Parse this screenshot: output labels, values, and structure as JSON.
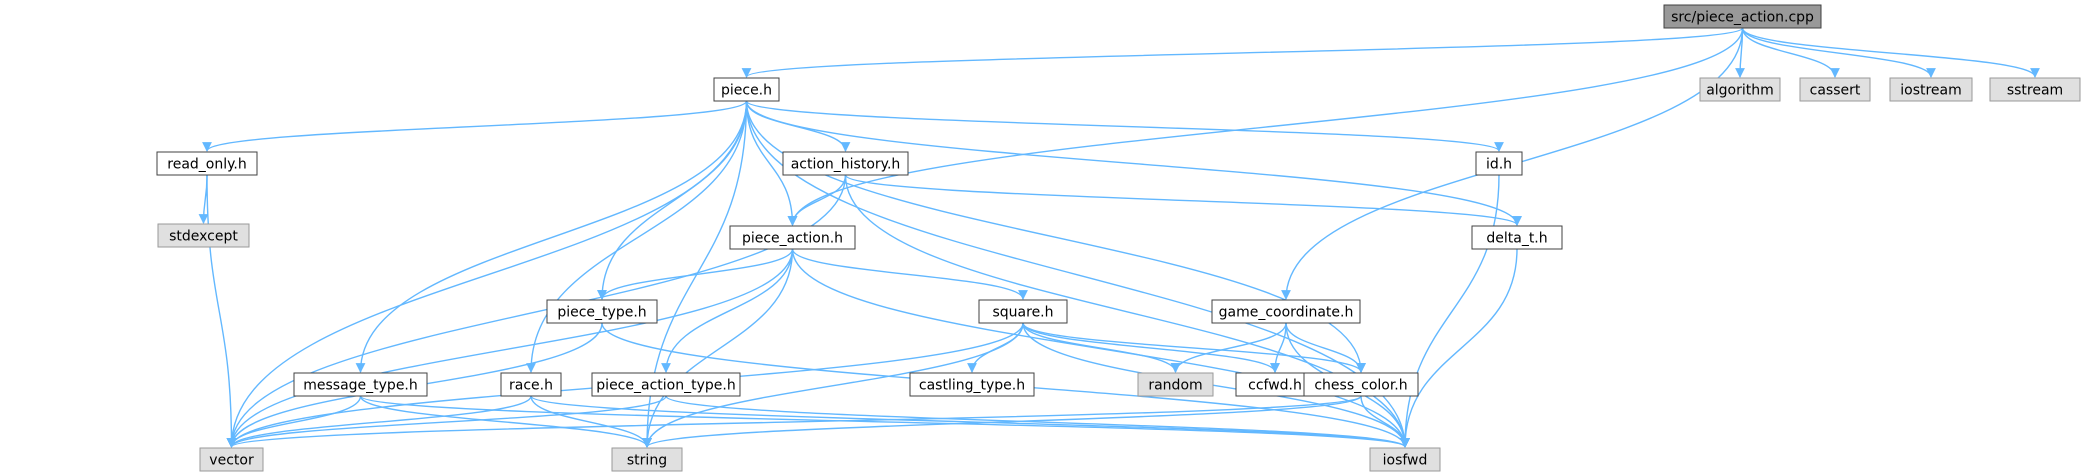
{
  "colors": {
    "edge": "#63b8ff",
    "root_fill": "#999999",
    "file_fill": "#ffffff",
    "system_fill": "#e0e0e0",
    "border": "#404040"
  },
  "nodes": [
    {
      "id": "root",
      "label": "src/piece_action.cpp",
      "kind": "root"
    },
    {
      "id": "piece_h",
      "label": "piece.h",
      "kind": "file"
    },
    {
      "id": "algorithm",
      "label": "algorithm",
      "kind": "system"
    },
    {
      "id": "cassert",
      "label": "cassert",
      "kind": "system"
    },
    {
      "id": "iostream",
      "label": "iostream",
      "kind": "system"
    },
    {
      "id": "sstream",
      "label": "sstream",
      "kind": "system"
    },
    {
      "id": "read_only_h",
      "label": "read_only.h",
      "kind": "file"
    },
    {
      "id": "action_history_h",
      "label": "action_history.h",
      "kind": "file"
    },
    {
      "id": "id_h",
      "label": "id.h",
      "kind": "file"
    },
    {
      "id": "stdexcept",
      "label": "stdexcept",
      "kind": "system"
    },
    {
      "id": "piece_action_h",
      "label": "piece_action.h",
      "kind": "file"
    },
    {
      "id": "delta_t_h",
      "label": "delta_t.h",
      "kind": "file"
    },
    {
      "id": "piece_type_h",
      "label": "piece_type.h",
      "kind": "file"
    },
    {
      "id": "square_h",
      "label": "square.h",
      "kind": "file"
    },
    {
      "id": "game_coordinate_h",
      "label": "game_coordinate.h",
      "kind": "file"
    },
    {
      "id": "message_type_h",
      "label": "message_type.h",
      "kind": "file"
    },
    {
      "id": "race_h",
      "label": "race.h",
      "kind": "file"
    },
    {
      "id": "piece_action_type_h",
      "label": "piece_action_type.h",
      "kind": "file"
    },
    {
      "id": "castling_type_h",
      "label": "castling_type.h",
      "kind": "file"
    },
    {
      "id": "random",
      "label": "random",
      "kind": "system"
    },
    {
      "id": "ccfwd_h",
      "label": "ccfwd.h",
      "kind": "file"
    },
    {
      "id": "chess_color_h",
      "label": "chess_color.h",
      "kind": "file"
    },
    {
      "id": "vector",
      "label": "vector",
      "kind": "system"
    },
    {
      "id": "string",
      "label": "string",
      "kind": "system"
    },
    {
      "id": "iosfwd",
      "label": "iosfwd",
      "kind": "system"
    }
  ],
  "edges": [
    [
      "root",
      "piece_h"
    ],
    [
      "root",
      "algorithm"
    ],
    [
      "root",
      "cassert"
    ],
    [
      "root",
      "iostream"
    ],
    [
      "root",
      "sstream"
    ],
    [
      "root",
      "piece_action_h"
    ],
    [
      "root",
      "game_coordinate_h"
    ],
    [
      "piece_h",
      "read_only_h"
    ],
    [
      "piece_h",
      "action_history_h"
    ],
    [
      "piece_h",
      "id_h"
    ],
    [
      "piece_h",
      "delta_t_h"
    ],
    [
      "piece_h",
      "piece_action_h"
    ],
    [
      "piece_h",
      "piece_type_h"
    ],
    [
      "piece_h",
      "message_type_h"
    ],
    [
      "piece_h",
      "race_h"
    ],
    [
      "piece_h",
      "chess_color_h"
    ],
    [
      "piece_h",
      "vector"
    ],
    [
      "piece_h",
      "string"
    ],
    [
      "piece_h",
      "iosfwd"
    ],
    [
      "read_only_h",
      "stdexcept"
    ],
    [
      "read_only_h",
      "vector"
    ],
    [
      "action_history_h",
      "piece_action_h"
    ],
    [
      "action_history_h",
      "delta_t_h"
    ],
    [
      "action_history_h",
      "vector"
    ],
    [
      "action_history_h",
      "iosfwd"
    ],
    [
      "id_h",
      "iosfwd"
    ],
    [
      "delta_t_h",
      "iosfwd"
    ],
    [
      "piece_action_h",
      "piece_type_h"
    ],
    [
      "piece_action_h",
      "square_h"
    ],
    [
      "piece_action_h",
      "piece_action_type_h"
    ],
    [
      "piece_action_h",
      "vector"
    ],
    [
      "piece_action_h",
      "string"
    ],
    [
      "piece_action_h",
      "iosfwd"
    ],
    [
      "piece_type_h",
      "vector"
    ],
    [
      "piece_type_h",
      "iosfwd"
    ],
    [
      "square_h",
      "castling_type_h"
    ],
    [
      "square_h",
      "random"
    ],
    [
      "square_h",
      "ccfwd_h"
    ],
    [
      "square_h",
      "chess_color_h"
    ],
    [
      "square_h",
      "vector"
    ],
    [
      "square_h",
      "string"
    ],
    [
      "square_h",
      "iosfwd"
    ],
    [
      "game_coordinate_h",
      "random"
    ],
    [
      "game_coordinate_h",
      "ccfwd_h"
    ],
    [
      "game_coordinate_h",
      "chess_color_h"
    ],
    [
      "game_coordinate_h",
      "iosfwd"
    ],
    [
      "message_type_h",
      "vector"
    ],
    [
      "message_type_h",
      "string"
    ],
    [
      "message_type_h",
      "iosfwd"
    ],
    [
      "race_h",
      "vector"
    ],
    [
      "race_h",
      "string"
    ],
    [
      "race_h",
      "iosfwd"
    ],
    [
      "piece_action_type_h",
      "vector"
    ],
    [
      "piece_action_type_h",
      "iosfwd"
    ],
    [
      "chess_color_h",
      "vector"
    ],
    [
      "chess_color_h",
      "string"
    ],
    [
      "chess_color_h",
      "iosfwd"
    ]
  ]
}
